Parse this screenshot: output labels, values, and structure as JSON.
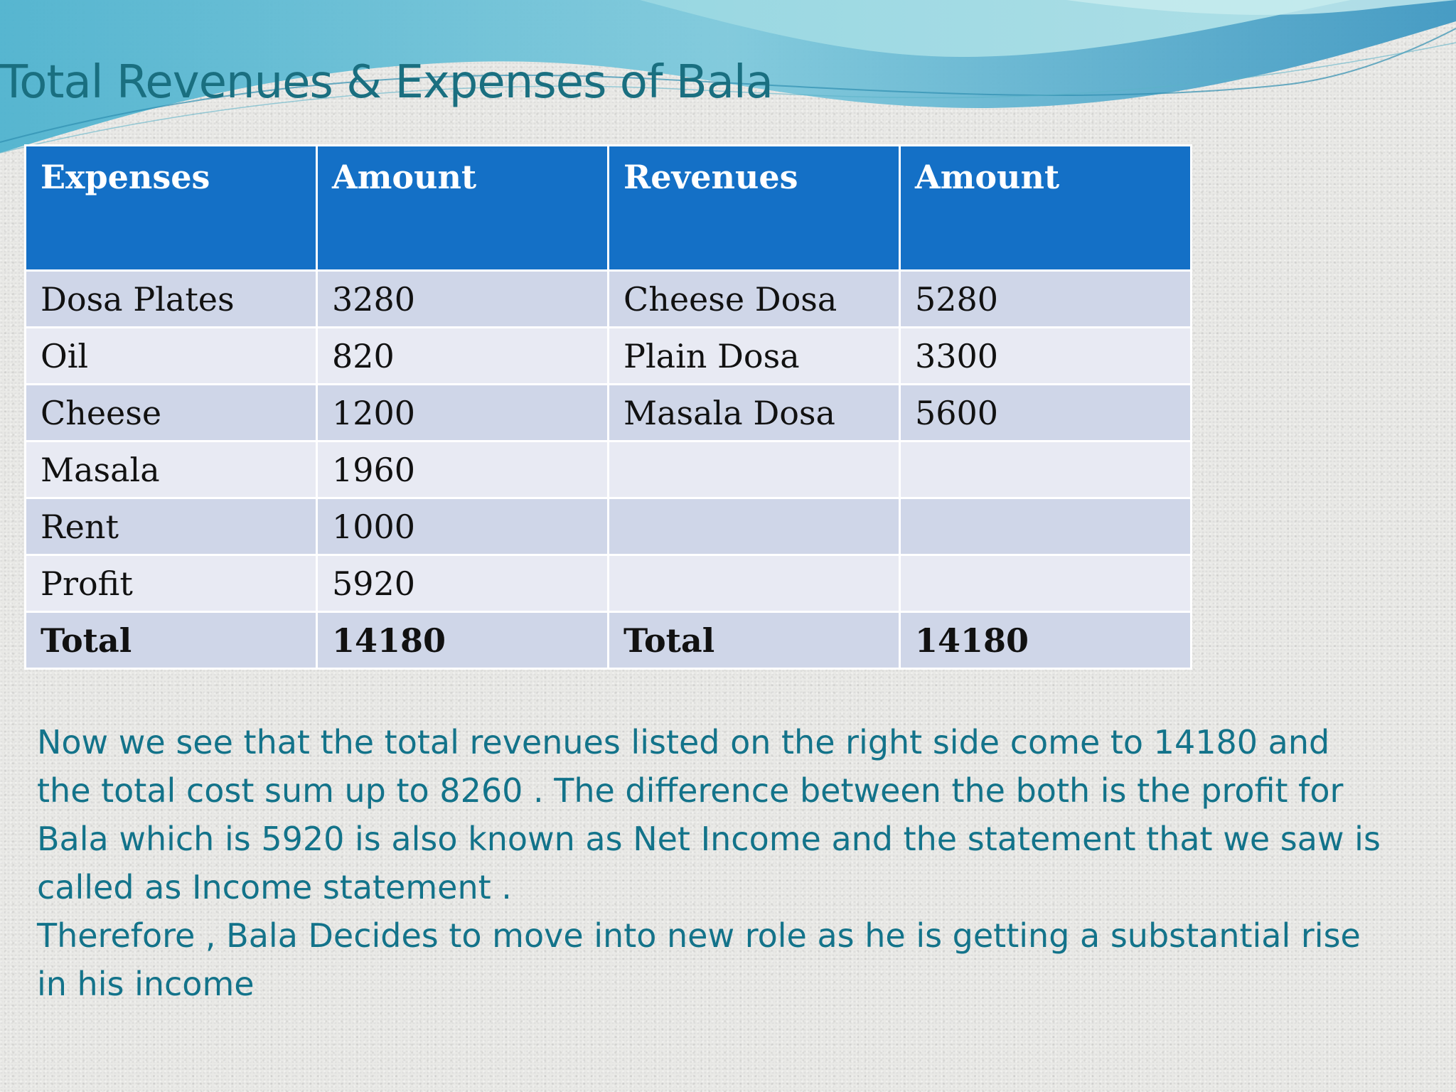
{
  "slide": {
    "title": "Total  Revenues & Expenses of Bala"
  },
  "table": {
    "headers": [
      "Expenses",
      "Amount",
      "Revenues",
      "Amount"
    ],
    "rows": [
      [
        "Dosa Plates",
        "3280",
        "Cheese Dosa",
        "5280"
      ],
      [
        "Oil",
        "820",
        "Plain Dosa",
        "3300"
      ],
      [
        "Cheese",
        "1200",
        "Masala Dosa",
        "5600"
      ],
      [
        "Masala",
        "1960",
        "",
        ""
      ],
      [
        "Rent",
        "1000",
        "",
        ""
      ],
      [
        "Profit",
        "5920",
        "",
        ""
      ],
      [
        "Total",
        "14180",
        "Total",
        "14180"
      ]
    ]
  },
  "body": {
    "paragraph_1": "Now we see that the total revenues listed on the right side come to 14180 and the total cost sum up to 8260 . The difference between the both is the profit for Bala which is 5920  is also known as Net Income and the statement that we saw is called as Income statement .",
    "paragraph_2": "Therefore , Bala Decides to move into new role as he is getting a substantial rise in his income"
  },
  "colors": {
    "header_blue": "#1470c6",
    "row_dark": "#cfd6e8",
    "row_light": "#e8eaf3",
    "text_teal": "#13738a",
    "title_teal": "#1a6f80"
  }
}
